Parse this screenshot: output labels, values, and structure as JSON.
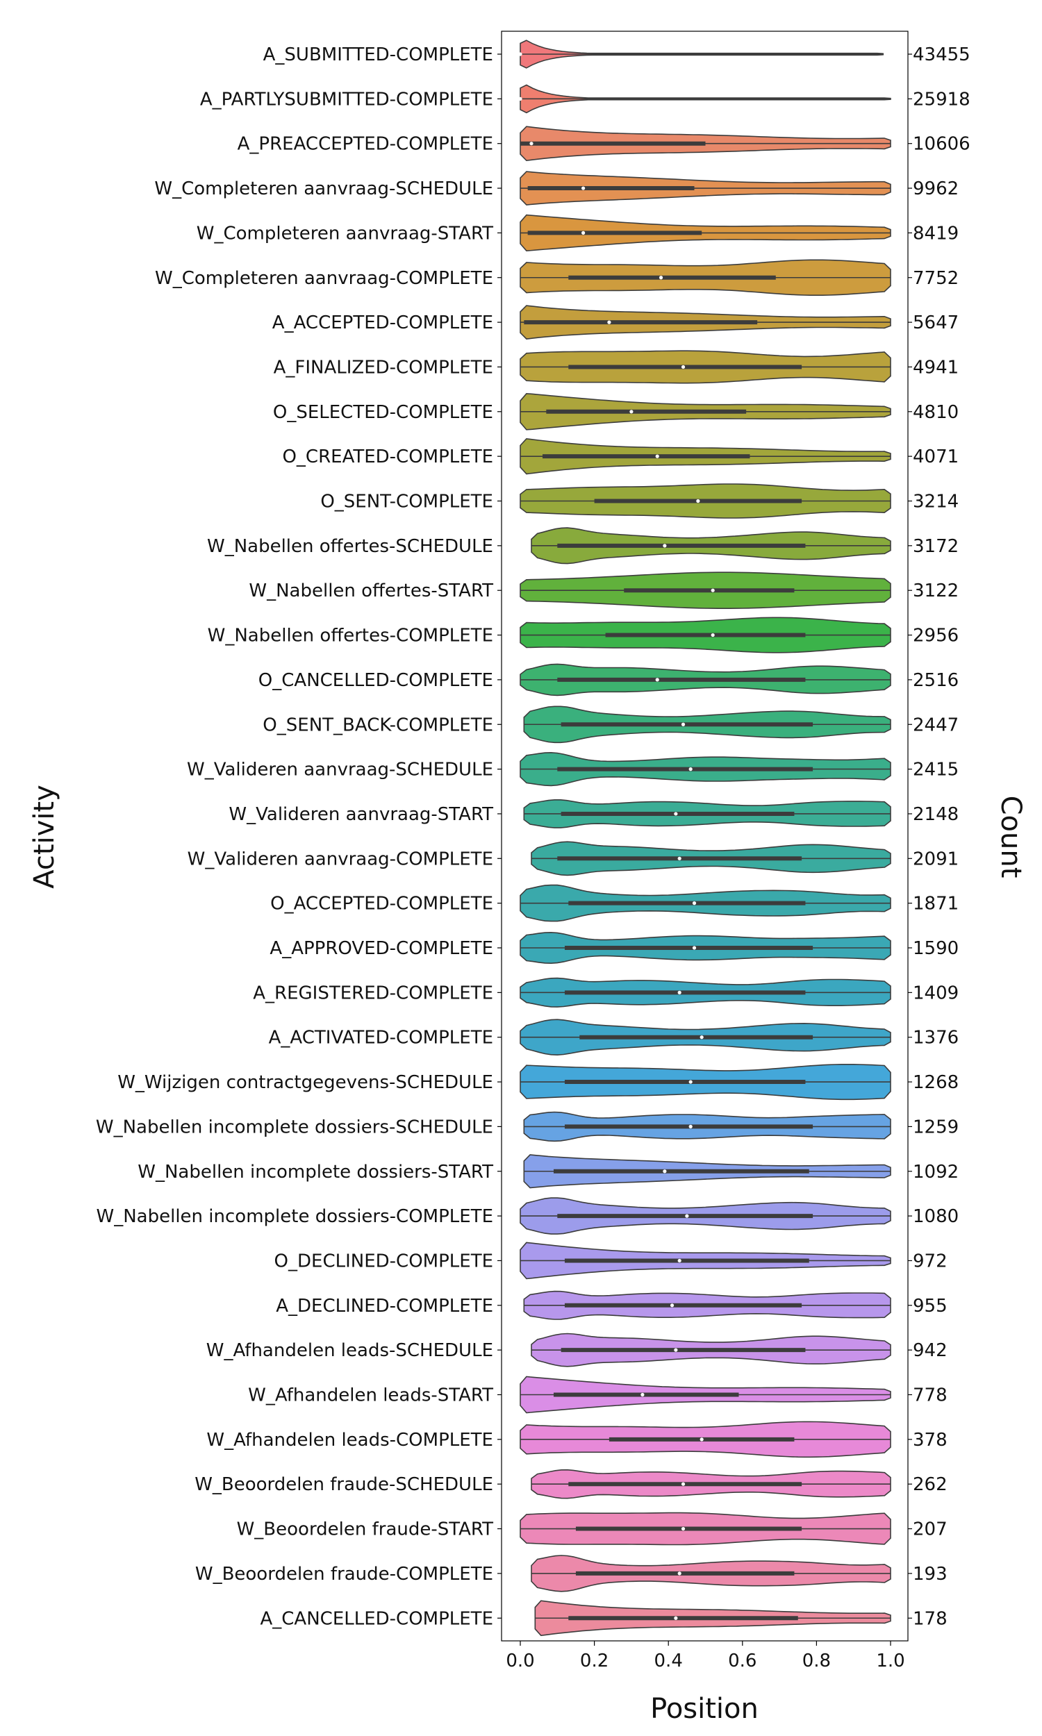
{
  "chart_data": {
    "type": "violin",
    "xlabel": "Position",
    "ylabel": "Activity",
    "y2label": "Count",
    "xlim": [
      0.0,
      1.0
    ],
    "xticks": [
      "0.0",
      "0.2",
      "0.4",
      "0.6",
      "0.8",
      "1.0"
    ],
    "grid": false,
    "series": [
      {
        "name": "A_SUBMITTED-COMPLETE",
        "count": "43455",
        "color": "#f0787b",
        "box": [
          0.0,
          0.0,
          0.0
        ],
        "whisker": [
          0.0,
          0.98
        ],
        "shape": "spike"
      },
      {
        "name": "A_PARTLYSUBMITTED-COMPLETE",
        "count": "25918",
        "color": "#ef7f6f",
        "box": [
          0.0,
          0.0,
          0.0
        ],
        "whisker": [
          0.0,
          1.0
        ],
        "shape": "spike"
      },
      {
        "name": "A_PREACCEPTED-COMPLETE",
        "count": "10606",
        "color": "#e8896a",
        "box": [
          0.0,
          0.03,
          0.5
        ],
        "whisker": [
          0.0,
          1.0
        ],
        "shape": "early"
      },
      {
        "name": "W_Completeren aanvraag-SCHEDULE",
        "count": "9962",
        "color": "#e39153",
        "box": [
          0.02,
          0.17,
          0.47
        ],
        "whisker": [
          0.0,
          1.0
        ],
        "shape": "early"
      },
      {
        "name": "W_Completeren aanvraag-START",
        "count": "8419",
        "color": "#d9963f",
        "box": [
          0.02,
          0.17,
          0.49
        ],
        "whisker": [
          0.0,
          1.0
        ],
        "shape": "early"
      },
      {
        "name": "W_Completeren aanvraag-COMPLETE",
        "count": "7752",
        "color": "#cd9c3e",
        "box": [
          0.13,
          0.38,
          0.69
        ],
        "whisker": [
          0.0,
          1.0
        ],
        "shape": "flat"
      },
      {
        "name": "A_ACCEPTED-COMPLETE",
        "count": "5647",
        "color": "#c39e3d",
        "box": [
          0.01,
          0.24,
          0.64
        ],
        "whisker": [
          0.0,
          1.0
        ],
        "shape": "early"
      },
      {
        "name": "A_FINALIZED-COMPLETE",
        "count": "4941",
        "color": "#b9a23c",
        "box": [
          0.13,
          0.44,
          0.76
        ],
        "whisker": [
          0.0,
          1.0
        ],
        "shape": "flat"
      },
      {
        "name": "O_SELECTED-COMPLETE",
        "count": "4810",
        "color": "#aca53c",
        "box": [
          0.07,
          0.3,
          0.61
        ],
        "whisker": [
          0.0,
          1.0
        ],
        "shape": "early"
      },
      {
        "name": "O_CREATED-COMPLETE",
        "count": "4071",
        "color": "#a2a63b",
        "box": [
          0.06,
          0.37,
          0.62
        ],
        "whisker": [
          0.0,
          1.0
        ],
        "shape": "early"
      },
      {
        "name": "O_SENT-COMPLETE",
        "count": "3214",
        "color": "#97a83b",
        "box": [
          0.2,
          0.48,
          0.76
        ],
        "whisker": [
          0.0,
          1.0
        ],
        "shape": "flat"
      },
      {
        "name": "W_Nabellen offertes-SCHEDULE",
        "count": "3172",
        "color": "#88aa3c",
        "box": [
          0.1,
          0.39,
          0.77
        ],
        "whisker": [
          0.03,
          1.0
        ],
        "shape": "bumpy"
      },
      {
        "name": "W_Nabellen offertes-START",
        "count": "3122",
        "color": "#61b13c",
        "box": [
          0.28,
          0.52,
          0.74
        ],
        "whisker": [
          0.0,
          1.0
        ],
        "shape": "mid"
      },
      {
        "name": "W_Nabellen offertes-COMPLETE",
        "count": "2956",
        "color": "#3bb34a",
        "box": [
          0.23,
          0.52,
          0.77
        ],
        "whisker": [
          0.0,
          1.0
        ],
        "shape": "flat"
      },
      {
        "name": "O_CANCELLED-COMPLETE",
        "count": "2516",
        "color": "#3db26f",
        "box": [
          0.1,
          0.37,
          0.77
        ],
        "whisker": [
          0.0,
          1.0
        ],
        "shape": "bumpy"
      },
      {
        "name": "O_SENT_BACK-COMPLETE",
        "count": "2447",
        "color": "#3ab07d",
        "box": [
          0.11,
          0.44,
          0.79
        ],
        "whisker": [
          0.01,
          1.0
        ],
        "shape": "bumpy"
      },
      {
        "name": "W_Valideren aanvraag-SCHEDULE",
        "count": "2415",
        "color": "#3aae8b",
        "box": [
          0.1,
          0.46,
          0.79
        ],
        "whisker": [
          0.0,
          1.0
        ],
        "shape": "bumpy"
      },
      {
        "name": "W_Valideren aanvraag-START",
        "count": "2148",
        "color": "#3bad95",
        "box": [
          0.11,
          0.42,
          0.74
        ],
        "whisker": [
          0.01,
          1.0
        ],
        "shape": "bumpy"
      },
      {
        "name": "W_Valideren aanvraag-COMPLETE",
        "count": "2091",
        "color": "#3aab9f",
        "box": [
          0.1,
          0.43,
          0.76
        ],
        "whisker": [
          0.03,
          1.0
        ],
        "shape": "bumpy"
      },
      {
        "name": "O_ACCEPTED-COMPLETE",
        "count": "1871",
        "color": "#3aa9ab",
        "box": [
          0.13,
          0.47,
          0.77
        ],
        "whisker": [
          0.0,
          1.0
        ],
        "shape": "bumpy"
      },
      {
        "name": "A_APPROVED-COMPLETE",
        "count": "1590",
        "color": "#3aa8b5",
        "box": [
          0.12,
          0.47,
          0.79
        ],
        "whisker": [
          0.0,
          1.0
        ],
        "shape": "bumpy"
      },
      {
        "name": "A_REGISTERED-COMPLETE",
        "count": "1409",
        "color": "#3ba7bf",
        "box": [
          0.12,
          0.43,
          0.77
        ],
        "whisker": [
          0.0,
          1.0
        ],
        "shape": "bumpy"
      },
      {
        "name": "A_ACTIVATED-COMPLETE",
        "count": "1376",
        "color": "#3ea6c9",
        "box": [
          0.16,
          0.49,
          0.79
        ],
        "whisker": [
          0.0,
          1.0
        ],
        "shape": "bumpy"
      },
      {
        "name": "W_Wijzigen contractgegevens-SCHEDULE",
        "count": "1268",
        "color": "#44a7d9",
        "box": [
          0.12,
          0.46,
          0.77
        ],
        "whisker": [
          0.0,
          1.0
        ],
        "shape": "flat"
      },
      {
        "name": "W_Nabellen incomplete dossiers-SCHEDULE",
        "count": "1259",
        "color": "#66a3e3",
        "box": [
          0.12,
          0.46,
          0.79
        ],
        "whisker": [
          0.01,
          1.0
        ],
        "shape": "bumpy"
      },
      {
        "name": "W_Nabellen incomplete dossiers-START",
        "count": "1092",
        "color": "#86a0ea",
        "box": [
          0.09,
          0.39,
          0.78
        ],
        "whisker": [
          0.01,
          1.0
        ],
        "shape": "early"
      },
      {
        "name": "W_Nabellen incomplete dossiers-COMPLETE",
        "count": "1080",
        "color": "#9c9ceb",
        "box": [
          0.1,
          0.45,
          0.79
        ],
        "whisker": [
          0.0,
          1.0
        ],
        "shape": "bumpy"
      },
      {
        "name": "O_DECLINED-COMPLETE",
        "count": "972",
        "color": "#a99aed",
        "box": [
          0.12,
          0.43,
          0.78
        ],
        "whisker": [
          0.0,
          1.0
        ],
        "shape": "early"
      },
      {
        "name": "A_DECLINED-COMPLETE",
        "count": "955",
        "color": "#b797ec",
        "box": [
          0.12,
          0.41,
          0.76
        ],
        "whisker": [
          0.01,
          1.0
        ],
        "shape": "bumpy"
      },
      {
        "name": "W_Afhandelen leads-SCHEDULE",
        "count": "942",
        "color": "#c893ea",
        "box": [
          0.11,
          0.42,
          0.77
        ],
        "whisker": [
          0.03,
          1.0
        ],
        "shape": "bumpy"
      },
      {
        "name": "W_Afhandelen leads-START",
        "count": "778",
        "color": "#da8ee6",
        "box": [
          0.09,
          0.33,
          0.59
        ],
        "whisker": [
          0.0,
          1.0
        ],
        "shape": "early"
      },
      {
        "name": "W_Afhandelen leads-COMPLETE",
        "count": "378",
        "color": "#e789d8",
        "box": [
          0.24,
          0.49,
          0.74
        ],
        "whisker": [
          0.0,
          1.0
        ],
        "shape": "flat"
      },
      {
        "name": "W_Beoordelen fraude-SCHEDULE",
        "count": "262",
        "color": "#ec89c8",
        "box": [
          0.13,
          0.44,
          0.76
        ],
        "whisker": [
          0.03,
          1.0
        ],
        "shape": "bumpy"
      },
      {
        "name": "W_Beoordelen fraude-START",
        "count": "207",
        "color": "#ec88b8",
        "box": [
          0.15,
          0.44,
          0.76
        ],
        "whisker": [
          0.0,
          1.0
        ],
        "shape": "flat"
      },
      {
        "name": "W_Beoordelen fraude-COMPLETE",
        "count": "193",
        "color": "#ec89aa",
        "box": [
          0.15,
          0.43,
          0.74
        ],
        "whisker": [
          0.03,
          1.0
        ],
        "shape": "bumpy"
      },
      {
        "name": "A_CANCELLED-COMPLETE",
        "count": "178",
        "color": "#ec8b9d",
        "box": [
          0.13,
          0.42,
          0.75
        ],
        "whisker": [
          0.04,
          1.0
        ],
        "shape": "early"
      }
    ]
  }
}
